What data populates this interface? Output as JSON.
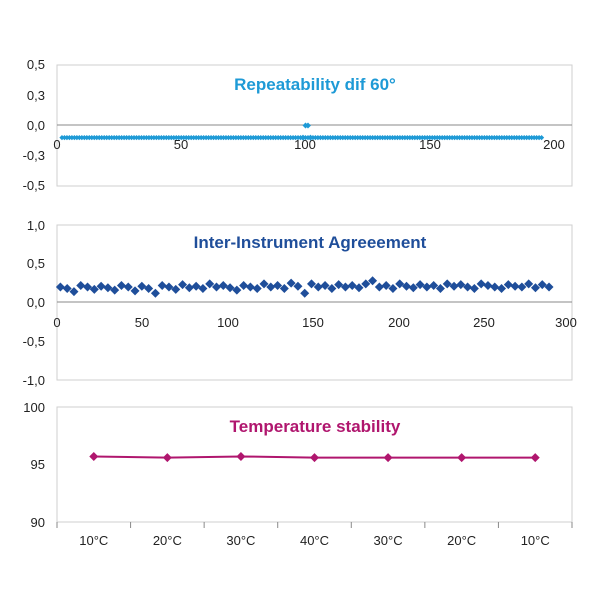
{
  "chart_data": [
    {
      "type": "scatter",
      "title": "Repeatability dif 60°",
      "xlabel": "",
      "ylabel": "",
      "xlim": [
        0,
        200
      ],
      "ylim": [
        -0.5,
        0.5
      ],
      "x_ticks": [
        "0",
        "50",
        "100",
        "150",
        "200"
      ],
      "y_ticks": [
        "0,5",
        "0,3",
        "0,0",
        "-0,3",
        "-0,5"
      ],
      "grid": false,
      "color": "#1e9ad6",
      "series": [
        {
          "x": [
            2,
            195
          ],
          "y": [
            -0.1,
            -0.1
          ],
          "note_values": "constant -0.1 across 2..195 except small spike"
        },
        {
          "x": [
            99,
            100,
            101,
            102
          ],
          "y": [
            -0.1,
            0.0,
            0.0,
            -0.1
          ]
        }
      ]
    },
    {
      "type": "scatter",
      "title": "Inter-Instrument Agreeement",
      "xlabel": "",
      "ylabel": "",
      "xlim": [
        0,
        300
      ],
      "ylim": [
        -1.0,
        1.0
      ],
      "x_ticks": [
        "0",
        "50",
        "100",
        "150",
        "200",
        "250",
        "300"
      ],
      "y_ticks": [
        "1,0",
        "0,5",
        "0,0",
        "-0,5",
        "-1,0"
      ],
      "grid": false,
      "color": "#1f4e9a",
      "series": [
        {
          "x": [
            2,
            6,
            10,
            14,
            18,
            22,
            26,
            30,
            34,
            38,
            42,
            46,
            50,
            54,
            58,
            62,
            66,
            70,
            74,
            78,
            82,
            86,
            90,
            94,
            98,
            102,
            106,
            110,
            114,
            118,
            122,
            126,
            130,
            134,
            138,
            142,
            146,
            150,
            154,
            158,
            162,
            166,
            170,
            174,
            178,
            182,
            186,
            190,
            194,
            198,
            202,
            206,
            210,
            214,
            218,
            222,
            226,
            230,
            234,
            238,
            242,
            246,
            250,
            254,
            258,
            262,
            266,
            270,
            274,
            278,
            282,
            286,
            290
          ],
          "y": [
            0.2,
            0.18,
            0.14,
            0.22,
            0.2,
            0.17,
            0.21,
            0.19,
            0.16,
            0.22,
            0.2,
            0.15,
            0.21,
            0.18,
            0.12,
            0.22,
            0.2,
            0.17,
            0.23,
            0.19,
            0.21,
            0.18,
            0.24,
            0.2,
            0.22,
            0.19,
            0.16,
            0.22,
            0.2,
            0.18,
            0.24,
            0.2,
            0.22,
            0.18,
            0.25,
            0.21,
            0.12,
            0.24,
            0.2,
            0.22,
            0.18,
            0.23,
            0.2,
            0.22,
            0.19,
            0.24,
            0.28,
            0.2,
            0.22,
            0.18,
            0.24,
            0.21,
            0.19,
            0.23,
            0.2,
            0.22,
            0.18,
            0.24,
            0.21,
            0.23,
            0.2,
            0.18,
            0.24,
            0.22,
            0.2,
            0.18,
            0.23,
            0.21,
            0.2,
            0.24,
            0.19,
            0.23,
            0.2
          ]
        }
      ]
    },
    {
      "type": "line",
      "title": "Temperature stability",
      "xlabel": "",
      "ylabel": "",
      "categories": [
        "10°C",
        "20°C",
        "30°C",
        "40°C",
        "30°C",
        "20°C",
        "10°C"
      ],
      "ylim": [
        90,
        100
      ],
      "y_ticks": [
        "100",
        "95",
        "90"
      ],
      "grid": false,
      "color": "#b0166e",
      "series": [
        {
          "values": [
            95.7,
            95.6,
            95.7,
            95.6,
            95.6,
            95.6,
            95.6
          ]
        }
      ]
    }
  ]
}
